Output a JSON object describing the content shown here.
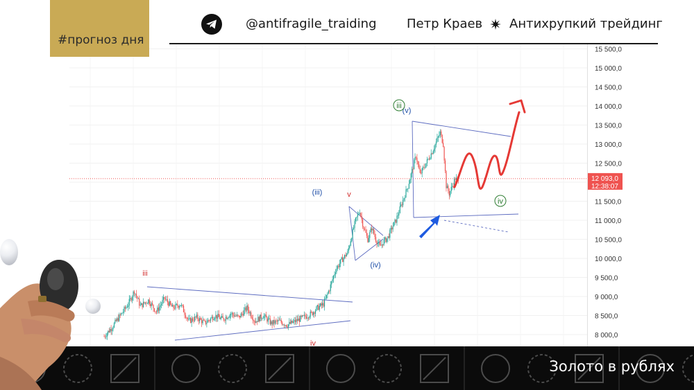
{
  "header": {
    "tag": "#прогноз дня",
    "channel": "@antifragile_traiding",
    "author": "Петр Краев",
    "brand": "Антихрупкий трейдинг",
    "icons": [
      "telegram-icon",
      "sparkle-icon"
    ]
  },
  "footer": {
    "title": "Золото в рублях"
  },
  "chart_data": {
    "type": "candlestick",
    "price_axis": {
      "ylim": [
        7900,
        15700
      ],
      "ticks": [
        "15 500,0",
        "15 000,0",
        "14 500,0",
        "14 000,0",
        "13 500,0",
        "13 000,0",
        "12 500,0",
        "12 000,0",
        "11 500,0",
        "11 000,0",
        "10 500,0",
        "10 000,0",
        "9 500,0",
        "9 000,0",
        "8 500,0",
        "8 000,0"
      ]
    },
    "current_price": {
      "value": 12093.0,
      "label": "12 093,0",
      "timer": "12:38:07",
      "color": "#ef5350"
    },
    "close_path": [
      [
        0,
        7950
      ],
      [
        8,
        8200
      ],
      [
        16,
        8500
      ],
      [
        24,
        8800
      ],
      [
        30,
        9150
      ],
      [
        36,
        8750
      ],
      [
        44,
        8900
      ],
      [
        52,
        8600
      ],
      [
        60,
        8950
      ],
      [
        68,
        8700
      ],
      [
        76,
        8800
      ],
      [
        84,
        8350
      ],
      [
        92,
        8450
      ],
      [
        100,
        8300
      ],
      [
        110,
        8500
      ],
      [
        118,
        8400
      ],
      [
        126,
        8550
      ],
      [
        134,
        8450
      ],
      [
        142,
        8700
      ],
      [
        150,
        8350
      ],
      [
        158,
        8500
      ],
      [
        166,
        8300
      ],
      [
        174,
        8350
      ],
      [
        182,
        8250
      ],
      [
        190,
        8350
      ],
      [
        198,
        8450
      ],
      [
        206,
        8550
      ],
      [
        212,
        8700
      ],
      [
        218,
        8800
      ],
      [
        224,
        9200
      ],
      [
        230,
        9700
      ],
      [
        236,
        9950
      ],
      [
        242,
        10150
      ],
      [
        246,
        10600
      ],
      [
        250,
        11000
      ],
      [
        254,
        11250
      ],
      [
        258,
        10800
      ],
      [
        262,
        10500
      ],
      [
        266,
        10800
      ],
      [
        270,
        10500
      ],
      [
        274,
        10300
      ],
      [
        278,
        10450
      ],
      [
        282,
        10550
      ],
      [
        286,
        10800
      ],
      [
        290,
        11000
      ],
      [
        294,
        11300
      ],
      [
        298,
        11600
      ],
      [
        302,
        11900
      ],
      [
        306,
        12300
      ],
      [
        310,
        12700
      ],
      [
        314,
        12200
      ],
      [
        318,
        12400
      ],
      [
        322,
        12600
      ],
      [
        326,
        12800
      ],
      [
        330,
        13050
      ],
      [
        334,
        13300
      ],
      [
        337,
        13000
      ],
      [
        340,
        11900
      ],
      [
        343,
        11700
      ],
      [
        346,
        11900
      ],
      [
        349,
        12100
      ],
      [
        352,
        12000
      ]
    ],
    "wave_labels": [
      {
        "text": "iii",
        "color": "#d32f2f"
      },
      {
        "text": "iv",
        "color": "#d32f2f"
      },
      {
        "text": "(iii)",
        "color": "#1f4fa8"
      },
      {
        "text": "v",
        "color": "#d32f2f"
      },
      {
        "text": "(iv)",
        "color": "#1f4fa8"
      },
      {
        "text": "(v)",
        "color": "#1f4fa8"
      },
      {
        "text": "iii",
        "color": "#2e7d32",
        "circled": true
      },
      {
        "text": "iv",
        "color": "#2e7d32",
        "circled": true
      }
    ],
    "forecast_color": "#e53935",
    "up_color": "#26a69a",
    "down_color": "#ef5350",
    "trendline_color": "#5c6bc0"
  }
}
